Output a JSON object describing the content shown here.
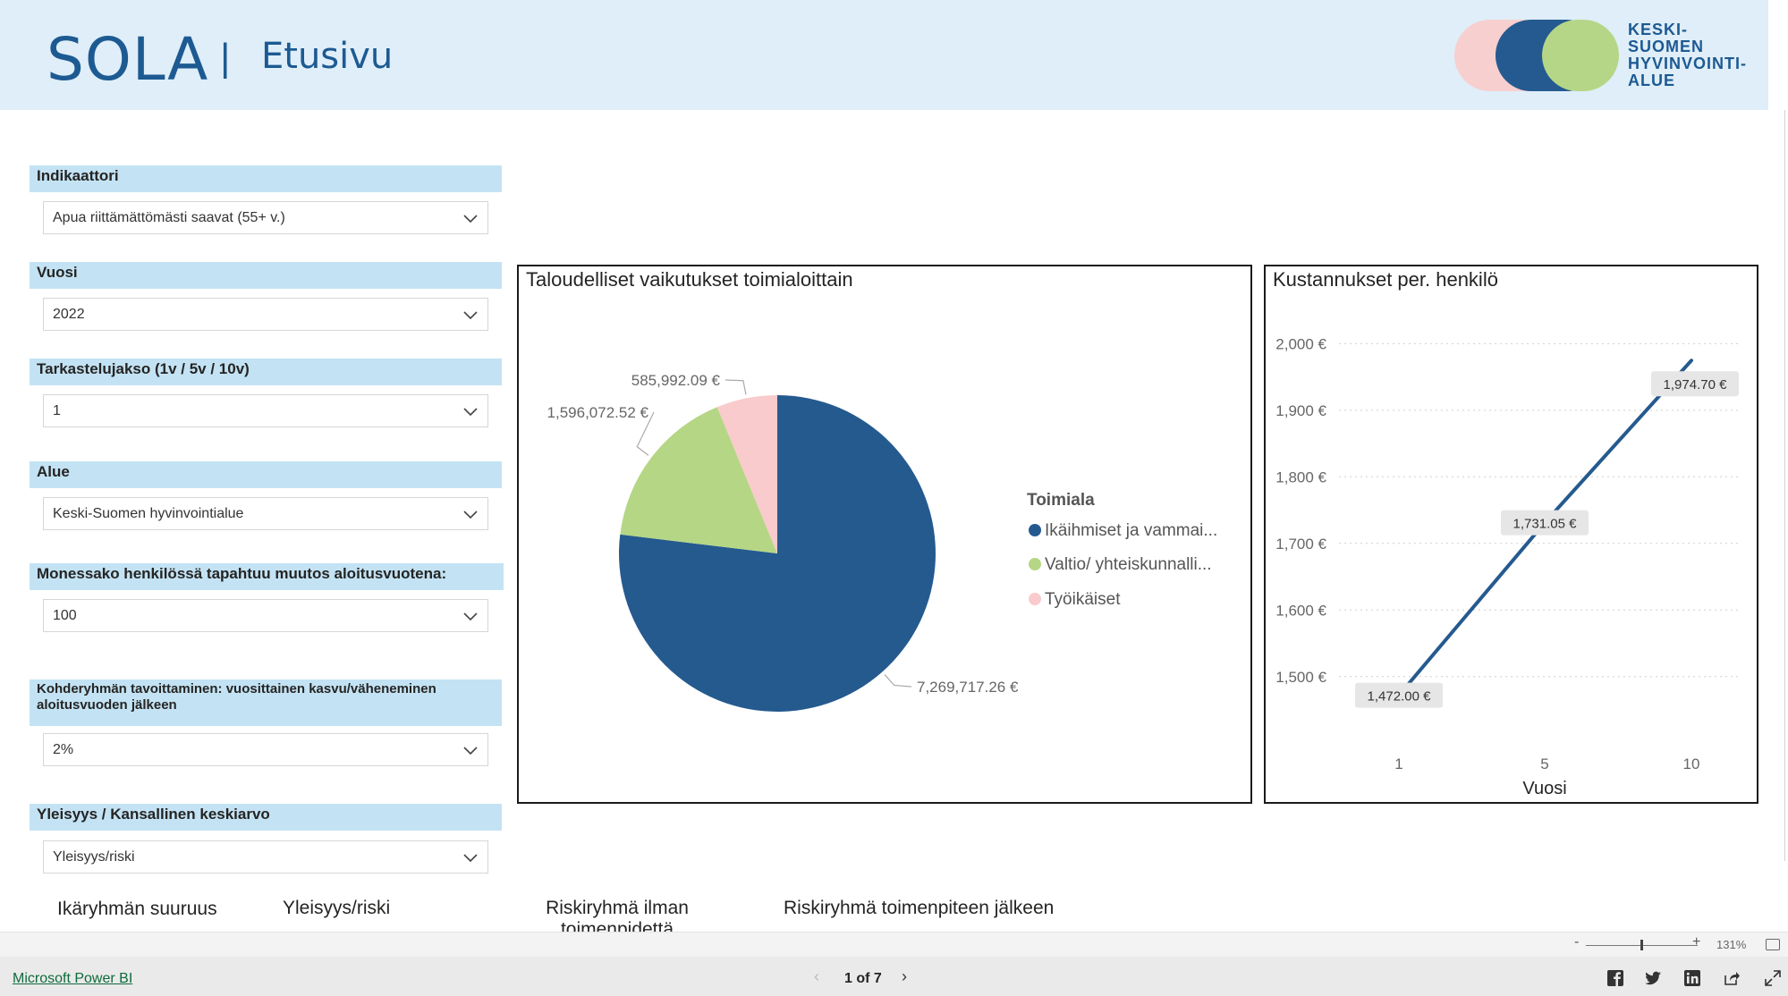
{
  "header": {
    "brand": "SOLA",
    "separator": "|",
    "page_title": "Etusivu",
    "logo_lines": [
      "KESKI-",
      "SUOMEN",
      "HYVINVOINTI-",
      "ALUE"
    ]
  },
  "slicers": [
    {
      "label": "Indikaattori",
      "value": "Apua riittämättömästi saavat (55+ v.)"
    },
    {
      "label": "Vuosi",
      "value": "2022"
    },
    {
      "label": "Tarkastelujakso (1v / 5v / 10v)",
      "value": "1"
    },
    {
      "label": "Alue",
      "value": "Keski-Suomen hyvinvointialue"
    },
    {
      "label": "Monessako henkilössä tapahtuu muutos aloitusvuotena:",
      "value": "100"
    },
    {
      "label": "Kohderyhmän tavoittaminen: vuosittainen kasvu/väheneminen aloitusvuoden jälkeen",
      "value": "2%"
    },
    {
      "label": "Yleisyys / Kansallinen keskiarvo",
      "value": "Yleisyys/riski"
    }
  ],
  "pie_visual": {
    "title": "Taloudelliset vaikutukset toimialoittain",
    "legend_title": "Toimiala",
    "legend_items": [
      "Ikäihmiset ja vammai...",
      "Valtio/ yhteiskunnalli...",
      "Työikäiset"
    ]
  },
  "line_visual": {
    "title": "Kustannukset per. henkilö",
    "xlabel": "Vuosi"
  },
  "bottom_columns": [
    "Ikäryhmän suuruus",
    "Yleisyys/riski",
    "Riskiryhmä ilman toimenpidettä",
    "Riskiryhmä toimenpiteen jälkeen"
  ],
  "statusbar": {
    "zoom_minus": "-",
    "zoom_plus": "+",
    "zoom_level": "131%"
  },
  "footer": {
    "powerbi_link": "Microsoft Power BI",
    "pager": "1 of 7",
    "prev": "‹",
    "next": "›"
  },
  "chart_data": [
    {
      "type": "pie",
      "title": "Taloudelliset vaikutukset toimialoittain",
      "categories": [
        "Ikäihmiset ja vammai...",
        "Valtio/ yhteiskunnalli...",
        "Työikäiset"
      ],
      "values": [
        7269717.26,
        1596072.52,
        585992.09
      ],
      "labels": [
        "7,269,717.26 €",
        "1,596,072.52 €",
        "585,992.09 €"
      ],
      "colors": [
        "#255a8f",
        "#b5d685",
        "#f9cbcc"
      ],
      "legend_title": "Toimiala",
      "legend": "right"
    },
    {
      "type": "line",
      "title": "Kustannukset per. henkilö",
      "x": [
        1,
        5,
        10
      ],
      "x_ticks": [
        "1",
        "5",
        "10"
      ],
      "y": [
        1472.0,
        1731.05,
        1974.7
      ],
      "data_labels": [
        "1,472.00 €",
        "1,731.05 €",
        "1,974.70 €"
      ],
      "xlabel": "Vuosi",
      "ylabel": "",
      "y_ticks": [
        1500,
        1600,
        1700,
        1800,
        1900,
        2000
      ],
      "y_tick_labels": [
        "1,500 €",
        "1,600 €",
        "1,700 €",
        "1,800 €",
        "1,900 €",
        "2,000 €"
      ],
      "ylim": [
        1450,
        2030
      ],
      "color": "#255a8f",
      "grid": true
    }
  ]
}
